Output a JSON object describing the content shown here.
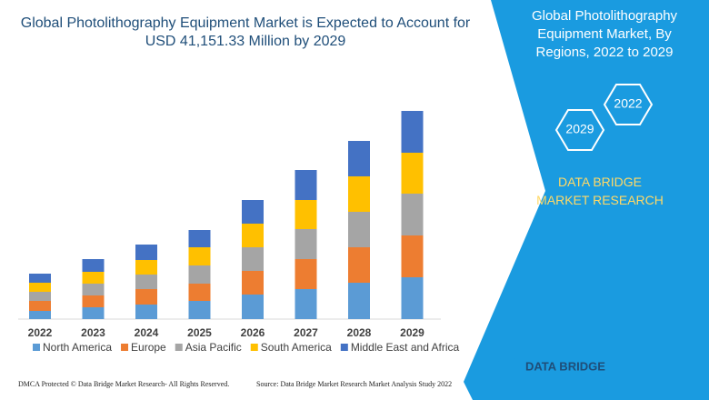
{
  "chart_data": {
    "type": "stacked_bar",
    "title": "Global Photolithography Equipment Market is Expected to Account for USD 41,151.33 Million by 2029",
    "categories": [
      "2022",
      "2023",
      "2024",
      "2025",
      "2026",
      "2027",
      "2028",
      "2029"
    ],
    "series": [
      {
        "name": "North America",
        "color": "#5b9bd5",
        "values": [
          9,
          13,
          16,
          20,
          27,
          33,
          40,
          46
        ]
      },
      {
        "name": "Europe",
        "color": "#ed7d31",
        "values": [
          11,
          13,
          17,
          19,
          26,
          33,
          39,
          46
        ]
      },
      {
        "name": "Asia Pacific",
        "color": "#a5a5a5",
        "values": [
          10,
          13,
          16,
          20,
          26,
          33,
          39,
          46
        ]
      },
      {
        "name": "South America",
        "color": "#ffc000",
        "values": [
          10,
          13,
          16,
          20,
          26,
          32,
          39,
          45
        ]
      },
      {
        "name": "Middle East and Africa",
        "color": "#4472c4",
        "values": [
          10,
          14,
          17,
          19,
          26,
          33,
          39,
          46
        ]
      }
    ],
    "legend": "bottom"
  },
  "panel": {
    "title": "Global Photolithography Equipment Market, By Regions, 2022 to 2029",
    "hex_top": "2022",
    "hex_bottom": "2029",
    "brand": "DATA BRIDGE MARKET RESEARCH"
  },
  "footer": {
    "left": "DMCA Protected © Data Bridge Market Research- All Rights Reserved.",
    "right": "Source: Data Bridge Market Research Market Analysis Study 2022",
    "logo": "DATA BRIDGE"
  }
}
